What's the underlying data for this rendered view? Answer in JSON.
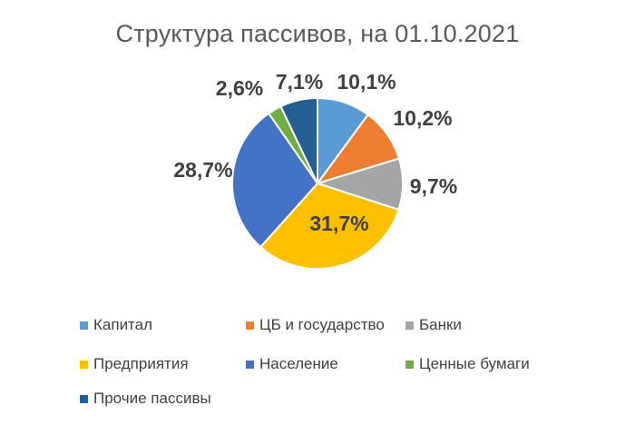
{
  "chart_data": {
    "type": "pie",
    "title": "Структура пассивов, на 01.10.2021",
    "legend_position": "bottom",
    "slices": [
      {
        "name": "Капитал",
        "value": 10.1,
        "label": "10,1%",
        "color": "#5B9BD5"
      },
      {
        "name": "ЦБ и государство",
        "value": 10.2,
        "label": "10,2%",
        "color": "#ED7D31"
      },
      {
        "name": "Банки",
        "value": 9.7,
        "label": "9,7%",
        "color": "#A5A5A5"
      },
      {
        "name": "Предприятия",
        "value": 31.7,
        "label": "31,7%",
        "color": "#FFC000"
      },
      {
        "name": "Население",
        "value": 28.7,
        "label": "28,7%",
        "color": "#4472C4"
      },
      {
        "name": "Ценные бумаги",
        "value": 2.6,
        "label": "2,6%",
        "color": "#70AD47"
      },
      {
        "name": "Прочие пассивы",
        "value": 7.1,
        "label": "7,1%",
        "color": "#255E91"
      }
    ]
  }
}
